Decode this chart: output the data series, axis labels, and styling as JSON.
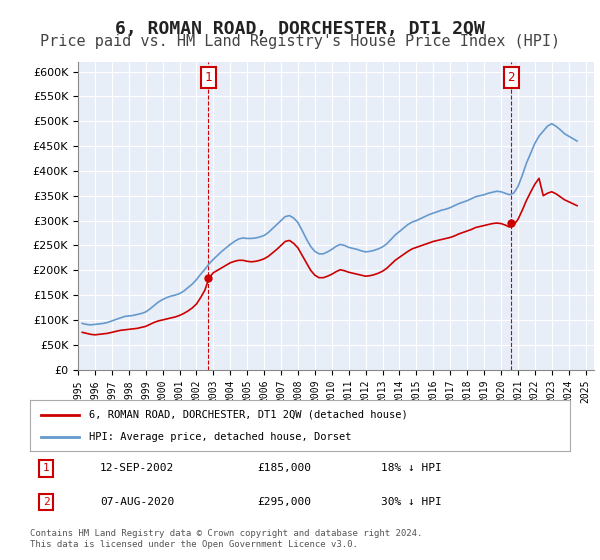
{
  "title": "6, ROMAN ROAD, DORCHESTER, DT1 2QW",
  "subtitle": "Price paid vs. HM Land Registry's House Price Index (HPI)",
  "title_fontsize": 13,
  "subtitle_fontsize": 11,
  "background_color": "#ffffff",
  "plot_bg_color": "#e8eef8",
  "grid_color": "#ffffff",
  "ylim": [
    0,
    620000
  ],
  "yticks": [
    0,
    50000,
    100000,
    150000,
    200000,
    250000,
    300000,
    350000,
    400000,
    450000,
    500000,
    550000,
    600000
  ],
  "xlim_start": 1995,
  "xlim_end": 2025.5,
  "sale1_year": 2002.7,
  "sale1_price": 185000,
  "sale2_year": 2020.6,
  "sale2_price": 295000,
  "red_line_color": "#cc0000",
  "blue_line_color": "#6699cc",
  "annotation_box_color": "#cc0000",
  "legend_label_red": "6, ROMAN ROAD, DORCHESTER, DT1 2QW (detached house)",
  "legend_label_blue": "HPI: Average price, detached house, Dorset",
  "note1_label": "1",
  "note1_date": "12-SEP-2002",
  "note1_price": "£185,000",
  "note1_pct": "18% ↓ HPI",
  "note2_label": "2",
  "note2_date": "07-AUG-2020",
  "note2_price": "£295,000",
  "note2_pct": "30% ↓ HPI",
  "footer": "Contains HM Land Registry data © Crown copyright and database right 2024.\nThis data is licensed under the Open Government Licence v3.0.",
  "hpi_data": {
    "years": [
      1995.25,
      1995.5,
      1995.75,
      1996.0,
      1996.25,
      1996.5,
      1996.75,
      1997.0,
      1997.25,
      1997.5,
      1997.75,
      1998.0,
      1998.25,
      1998.5,
      1998.75,
      1999.0,
      1999.25,
      1999.5,
      1999.75,
      2000.0,
      2000.25,
      2000.5,
      2000.75,
      2001.0,
      2001.25,
      2001.5,
      2001.75,
      2002.0,
      2002.25,
      2002.5,
      2002.75,
      2003.0,
      2003.25,
      2003.5,
      2003.75,
      2004.0,
      2004.25,
      2004.5,
      2004.75,
      2005.0,
      2005.25,
      2005.5,
      2005.75,
      2006.0,
      2006.25,
      2006.5,
      2006.75,
      2007.0,
      2007.25,
      2007.5,
      2007.75,
      2008.0,
      2008.25,
      2008.5,
      2008.75,
      2009.0,
      2009.25,
      2009.5,
      2009.75,
      2010.0,
      2010.25,
      2010.5,
      2010.75,
      2011.0,
      2011.25,
      2011.5,
      2011.75,
      2012.0,
      2012.25,
      2012.5,
      2012.75,
      2013.0,
      2013.25,
      2013.5,
      2013.75,
      2014.0,
      2014.25,
      2014.5,
      2014.75,
      2015.0,
      2015.25,
      2015.5,
      2015.75,
      2016.0,
      2016.25,
      2016.5,
      2016.75,
      2017.0,
      2017.25,
      2017.5,
      2017.75,
      2018.0,
      2018.25,
      2018.5,
      2018.75,
      2019.0,
      2019.25,
      2019.5,
      2019.75,
      2020.0,
      2020.25,
      2020.5,
      2020.75,
      2021.0,
      2021.25,
      2021.5,
      2021.75,
      2022.0,
      2022.25,
      2022.5,
      2022.75,
      2023.0,
      2023.25,
      2023.5,
      2023.75,
      2024.0,
      2024.25,
      2024.5
    ],
    "values": [
      93000,
      91000,
      90000,
      91000,
      92000,
      93000,
      95000,
      98000,
      101000,
      104000,
      107000,
      108000,
      109000,
      111000,
      113000,
      116000,
      122000,
      129000,
      136000,
      141000,
      145000,
      148000,
      150000,
      153000,
      158000,
      165000,
      172000,
      181000,
      192000,
      202000,
      213000,
      222000,
      230000,
      238000,
      245000,
      252000,
      258000,
      263000,
      265000,
      264000,
      264000,
      265000,
      267000,
      270000,
      276000,
      284000,
      292000,
      300000,
      308000,
      310000,
      305000,
      296000,
      280000,
      263000,
      248000,
      238000,
      233000,
      233000,
      237000,
      242000,
      248000,
      252000,
      250000,
      246000,
      244000,
      242000,
      239000,
      237000,
      238000,
      240000,
      243000,
      247000,
      253000,
      262000,
      271000,
      278000,
      285000,
      292000,
      297000,
      300000,
      304000,
      308000,
      312000,
      315000,
      318000,
      321000,
      323000,
      326000,
      330000,
      334000,
      337000,
      340000,
      344000,
      348000,
      350000,
      352000,
      355000,
      357000,
      359000,
      358000,
      355000,
      352000,
      355000,
      368000,
      390000,
      415000,
      435000,
      455000,
      470000,
      480000,
      490000,
      495000,
      490000,
      483000,
      475000,
      470000,
      465000,
      460000
    ]
  },
  "red_data": {
    "years": [
      1995.25,
      1995.5,
      1995.75,
      1996.0,
      1996.25,
      1996.5,
      1996.75,
      1997.0,
      1997.25,
      1997.5,
      1997.75,
      1998.0,
      1998.25,
      1998.5,
      1998.75,
      1999.0,
      1999.25,
      1999.5,
      1999.75,
      2000.0,
      2000.25,
      2000.5,
      2000.75,
      2001.0,
      2001.25,
      2001.5,
      2001.75,
      2002.0,
      2002.25,
      2002.5,
      2002.75,
      2003.0,
      2003.25,
      2003.5,
      2003.75,
      2004.0,
      2004.25,
      2004.5,
      2004.75,
      2005.0,
      2005.25,
      2005.5,
      2005.75,
      2006.0,
      2006.25,
      2006.5,
      2006.75,
      2007.0,
      2007.25,
      2007.5,
      2007.75,
      2008.0,
      2008.25,
      2008.5,
      2008.75,
      2009.0,
      2009.25,
      2009.5,
      2009.75,
      2010.0,
      2010.25,
      2010.5,
      2010.75,
      2011.0,
      2011.25,
      2011.5,
      2011.75,
      2012.0,
      2012.25,
      2012.5,
      2012.75,
      2013.0,
      2013.25,
      2013.5,
      2013.75,
      2014.0,
      2014.25,
      2014.5,
      2014.75,
      2015.0,
      2015.25,
      2015.5,
      2015.75,
      2016.0,
      2016.25,
      2016.5,
      2016.75,
      2017.0,
      2017.25,
      2017.5,
      2017.75,
      2018.0,
      2018.25,
      2018.5,
      2018.75,
      2019.0,
      2019.25,
      2019.5,
      2019.75,
      2020.0,
      2020.25,
      2020.5,
      2020.75,
      2021.0,
      2021.25,
      2021.5,
      2021.75,
      2022.0,
      2022.25,
      2022.5,
      2022.75,
      2023.0,
      2023.25,
      2023.5,
      2023.75,
      2024.0,
      2024.25,
      2024.5
    ],
    "values": [
      75000,
      73000,
      71000,
      70000,
      71000,
      72000,
      73000,
      75000,
      77000,
      79000,
      80000,
      81000,
      82000,
      83000,
      85000,
      87000,
      91000,
      95000,
      98000,
      100000,
      102000,
      104000,
      106000,
      109000,
      113000,
      118000,
      124000,
      132000,
      145000,
      160000,
      185000,
      195000,
      200000,
      205000,
      210000,
      215000,
      218000,
      220000,
      220000,
      218000,
      217000,
      218000,
      220000,
      223000,
      228000,
      235000,
      242000,
      250000,
      258000,
      260000,
      254000,
      245000,
      230000,
      215000,
      200000,
      190000,
      185000,
      185000,
      188000,
      192000,
      197000,
      201000,
      199000,
      196000,
      194000,
      192000,
      190000,
      188000,
      189000,
      191000,
      194000,
      198000,
      204000,
      212000,
      220000,
      226000,
      232000,
      238000,
      243000,
      246000,
      249000,
      252000,
      255000,
      258000,
      260000,
      262000,
      264000,
      266000,
      269000,
      273000,
      276000,
      279000,
      282000,
      286000,
      288000,
      290000,
      292000,
      294000,
      295000,
      294000,
      291000,
      287000,
      291000,
      302000,
      320000,
      340000,
      357000,
      373000,
      385000,
      350000,
      355000,
      358000,
      354000,
      348000,
      342000,
      338000,
      334000,
      330000
    ]
  }
}
